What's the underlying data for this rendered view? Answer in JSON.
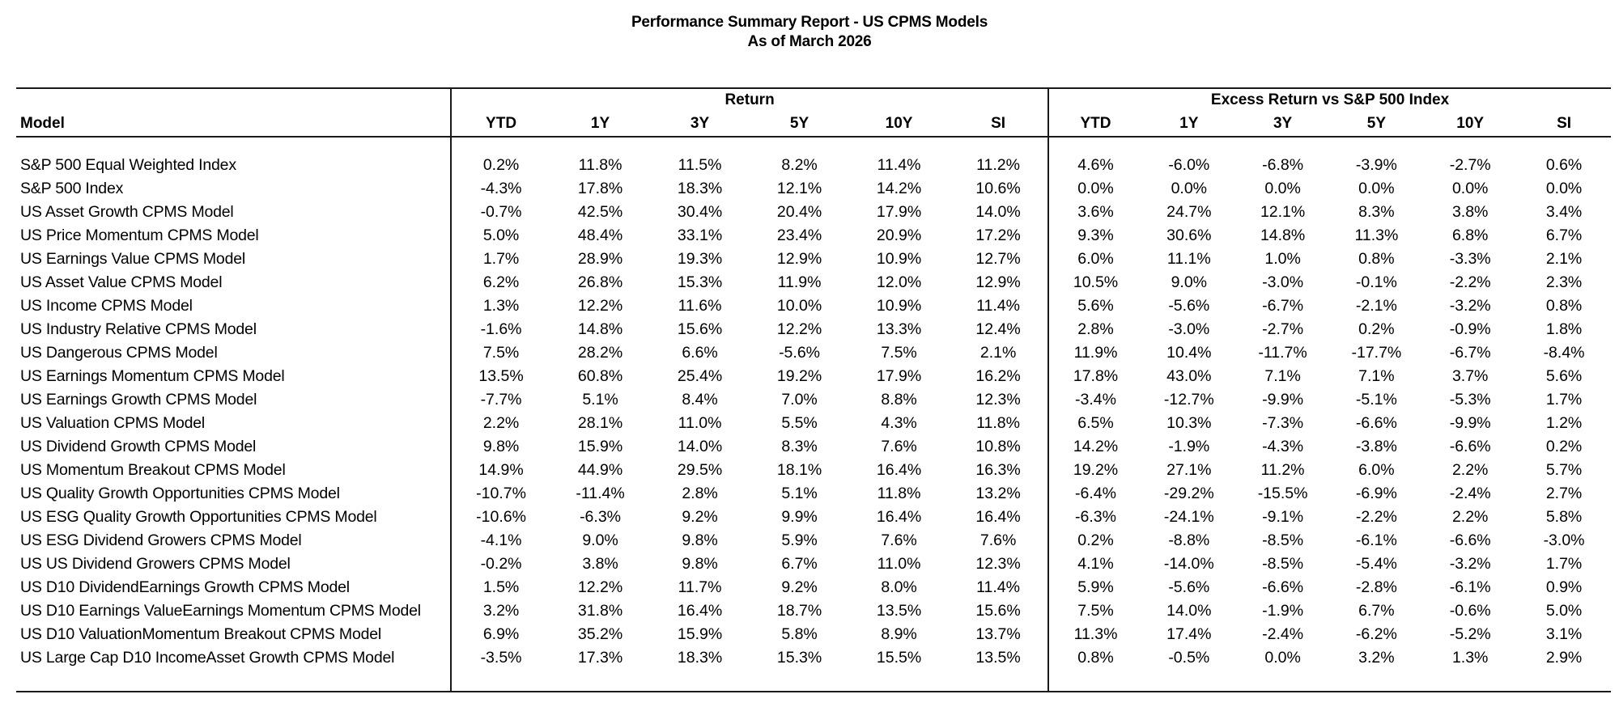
{
  "report": {
    "title": "Performance Summary Report - US CPMS Models",
    "subtitle": "As of March 2026"
  },
  "colors": {
    "background": "#ffffff",
    "text": "#000000",
    "line": "#1a1a1a"
  },
  "table": {
    "model_header": "Model",
    "groups": {
      "return_label": "Return",
      "excess_label": "Excess Return vs S&P 500 Index"
    },
    "period_headers": [
      "YTD",
      "1Y",
      "3Y",
      "5Y",
      "10Y",
      "SI"
    ],
    "rows": [
      {
        "model": "S&P 500 Equal Weighted Index",
        "ret": [
          "0.2%",
          "11.8%",
          "11.5%",
          "8.2%",
          "11.4%",
          "11.2%"
        ],
        "excess": [
          "4.6%",
          "-6.0%",
          "-6.8%",
          "-3.9%",
          "-2.7%",
          "0.6%"
        ]
      },
      {
        "model": "S&P 500 Index",
        "ret": [
          "-4.3%",
          "17.8%",
          "18.3%",
          "12.1%",
          "14.2%",
          "10.6%"
        ],
        "excess": [
          "0.0%",
          "0.0%",
          "0.0%",
          "0.0%",
          "0.0%",
          "0.0%"
        ]
      },
      {
        "model": "US Asset Growth CPMS Model",
        "ret": [
          "-0.7%",
          "42.5%",
          "30.4%",
          "20.4%",
          "17.9%",
          "14.0%"
        ],
        "excess": [
          "3.6%",
          "24.7%",
          "12.1%",
          "8.3%",
          "3.8%",
          "3.4%"
        ]
      },
      {
        "model": "US Price Momentum CPMS Model",
        "ret": [
          "5.0%",
          "48.4%",
          "33.1%",
          "23.4%",
          "20.9%",
          "17.2%"
        ],
        "excess": [
          "9.3%",
          "30.6%",
          "14.8%",
          "11.3%",
          "6.8%",
          "6.7%"
        ]
      },
      {
        "model": "US Earnings Value CPMS Model",
        "ret": [
          "1.7%",
          "28.9%",
          "19.3%",
          "12.9%",
          "10.9%",
          "12.7%"
        ],
        "excess": [
          "6.0%",
          "11.1%",
          "1.0%",
          "0.8%",
          "-3.3%",
          "2.1%"
        ]
      },
      {
        "model": "US Asset Value CPMS Model",
        "ret": [
          "6.2%",
          "26.8%",
          "15.3%",
          "11.9%",
          "12.0%",
          "12.9%"
        ],
        "excess": [
          "10.5%",
          "9.0%",
          "-3.0%",
          "-0.1%",
          "-2.2%",
          "2.3%"
        ]
      },
      {
        "model": "US Income CPMS Model",
        "ret": [
          "1.3%",
          "12.2%",
          "11.6%",
          "10.0%",
          "10.9%",
          "11.4%"
        ],
        "excess": [
          "5.6%",
          "-5.6%",
          "-6.7%",
          "-2.1%",
          "-3.2%",
          "0.8%"
        ]
      },
      {
        "model": "US Industry Relative CPMS Model",
        "ret": [
          "-1.6%",
          "14.8%",
          "15.6%",
          "12.2%",
          "13.3%",
          "12.4%"
        ],
        "excess": [
          "2.8%",
          "-3.0%",
          "-2.7%",
          "0.2%",
          "-0.9%",
          "1.8%"
        ]
      },
      {
        "model": "US Dangerous CPMS Model",
        "ret": [
          "7.5%",
          "28.2%",
          "6.6%",
          "-5.6%",
          "7.5%",
          "2.1%"
        ],
        "excess": [
          "11.9%",
          "10.4%",
          "-11.7%",
          "-17.7%",
          "-6.7%",
          "-8.4%"
        ]
      },
      {
        "model": "US Earnings Momentum CPMS Model",
        "ret": [
          "13.5%",
          "60.8%",
          "25.4%",
          "19.2%",
          "17.9%",
          "16.2%"
        ],
        "excess": [
          "17.8%",
          "43.0%",
          "7.1%",
          "7.1%",
          "3.7%",
          "5.6%"
        ]
      },
      {
        "model": "US Earnings Growth CPMS Model",
        "ret": [
          "-7.7%",
          "5.1%",
          "8.4%",
          "7.0%",
          "8.8%",
          "12.3%"
        ],
        "excess": [
          "-3.4%",
          "-12.7%",
          "-9.9%",
          "-5.1%",
          "-5.3%",
          "1.7%"
        ]
      },
      {
        "model": "US Valuation CPMS Model",
        "ret": [
          "2.2%",
          "28.1%",
          "11.0%",
          "5.5%",
          "4.3%",
          "11.8%"
        ],
        "excess": [
          "6.5%",
          "10.3%",
          "-7.3%",
          "-6.6%",
          "-9.9%",
          "1.2%"
        ]
      },
      {
        "model": "US Dividend Growth CPMS Model",
        "ret": [
          "9.8%",
          "15.9%",
          "14.0%",
          "8.3%",
          "7.6%",
          "10.8%"
        ],
        "excess": [
          "14.2%",
          "-1.9%",
          "-4.3%",
          "-3.8%",
          "-6.6%",
          "0.2%"
        ]
      },
      {
        "model": "US Momentum Breakout CPMS Model",
        "ret": [
          "14.9%",
          "44.9%",
          "29.5%",
          "18.1%",
          "16.4%",
          "16.3%"
        ],
        "excess": [
          "19.2%",
          "27.1%",
          "11.2%",
          "6.0%",
          "2.2%",
          "5.7%"
        ]
      },
      {
        "model": "US Quality Growth Opportunities CPMS Model",
        "ret": [
          "-10.7%",
          "-11.4%",
          "2.8%",
          "5.1%",
          "11.8%",
          "13.2%"
        ],
        "excess": [
          "-6.4%",
          "-29.2%",
          "-15.5%",
          "-6.9%",
          "-2.4%",
          "2.7%"
        ]
      },
      {
        "model": "US ESG Quality Growth Opportunities CPMS Model",
        "ret": [
          "-10.6%",
          "-6.3%",
          "9.2%",
          "9.9%",
          "16.4%",
          "16.4%"
        ],
        "excess": [
          "-6.3%",
          "-24.1%",
          "-9.1%",
          "-2.2%",
          "2.2%",
          "5.8%"
        ]
      },
      {
        "model": "US ESG Dividend Growers CPMS Model",
        "ret": [
          "-4.1%",
          "9.0%",
          "9.8%",
          "5.9%",
          "7.6%",
          "7.6%"
        ],
        "excess": [
          "0.2%",
          "-8.8%",
          "-8.5%",
          "-6.1%",
          "-6.6%",
          "-3.0%"
        ]
      },
      {
        "model": "US US Dividend Growers CPMS Model",
        "ret": [
          "-0.2%",
          "3.8%",
          "9.8%",
          "6.7%",
          "11.0%",
          "12.3%"
        ],
        "excess": [
          "4.1%",
          "-14.0%",
          "-8.5%",
          "-5.4%",
          "-3.2%",
          "1.7%"
        ]
      },
      {
        "model": "US D10 DividendEarnings Growth CPMS Model",
        "ret": [
          "1.5%",
          "12.2%",
          "11.7%",
          "9.2%",
          "8.0%",
          "11.4%"
        ],
        "excess": [
          "5.9%",
          "-5.6%",
          "-6.6%",
          "-2.8%",
          "-6.1%",
          "0.9%"
        ]
      },
      {
        "model": "US D10 Earnings ValueEarnings Momentum CPMS Model",
        "ret": [
          "3.2%",
          "31.8%",
          "16.4%",
          "18.7%",
          "13.5%",
          "15.6%"
        ],
        "excess": [
          "7.5%",
          "14.0%",
          "-1.9%",
          "6.7%",
          "-0.6%",
          "5.0%"
        ]
      },
      {
        "model": "US D10 ValuationMomentum Breakout CPMS Model",
        "ret": [
          "6.9%",
          "35.2%",
          "15.9%",
          "5.8%",
          "8.9%",
          "13.7%"
        ],
        "excess": [
          "11.3%",
          "17.4%",
          "-2.4%",
          "-6.2%",
          "-5.2%",
          "3.1%"
        ]
      },
      {
        "model": "US Large Cap D10 IncomeAsset Growth CPMS Model",
        "ret": [
          "-3.5%",
          "17.3%",
          "18.3%",
          "15.3%",
          "15.5%",
          "13.5%"
        ],
        "excess": [
          "0.8%",
          "-0.5%",
          "0.0%",
          "3.2%",
          "1.3%",
          "2.9%"
        ]
      }
    ]
  }
}
